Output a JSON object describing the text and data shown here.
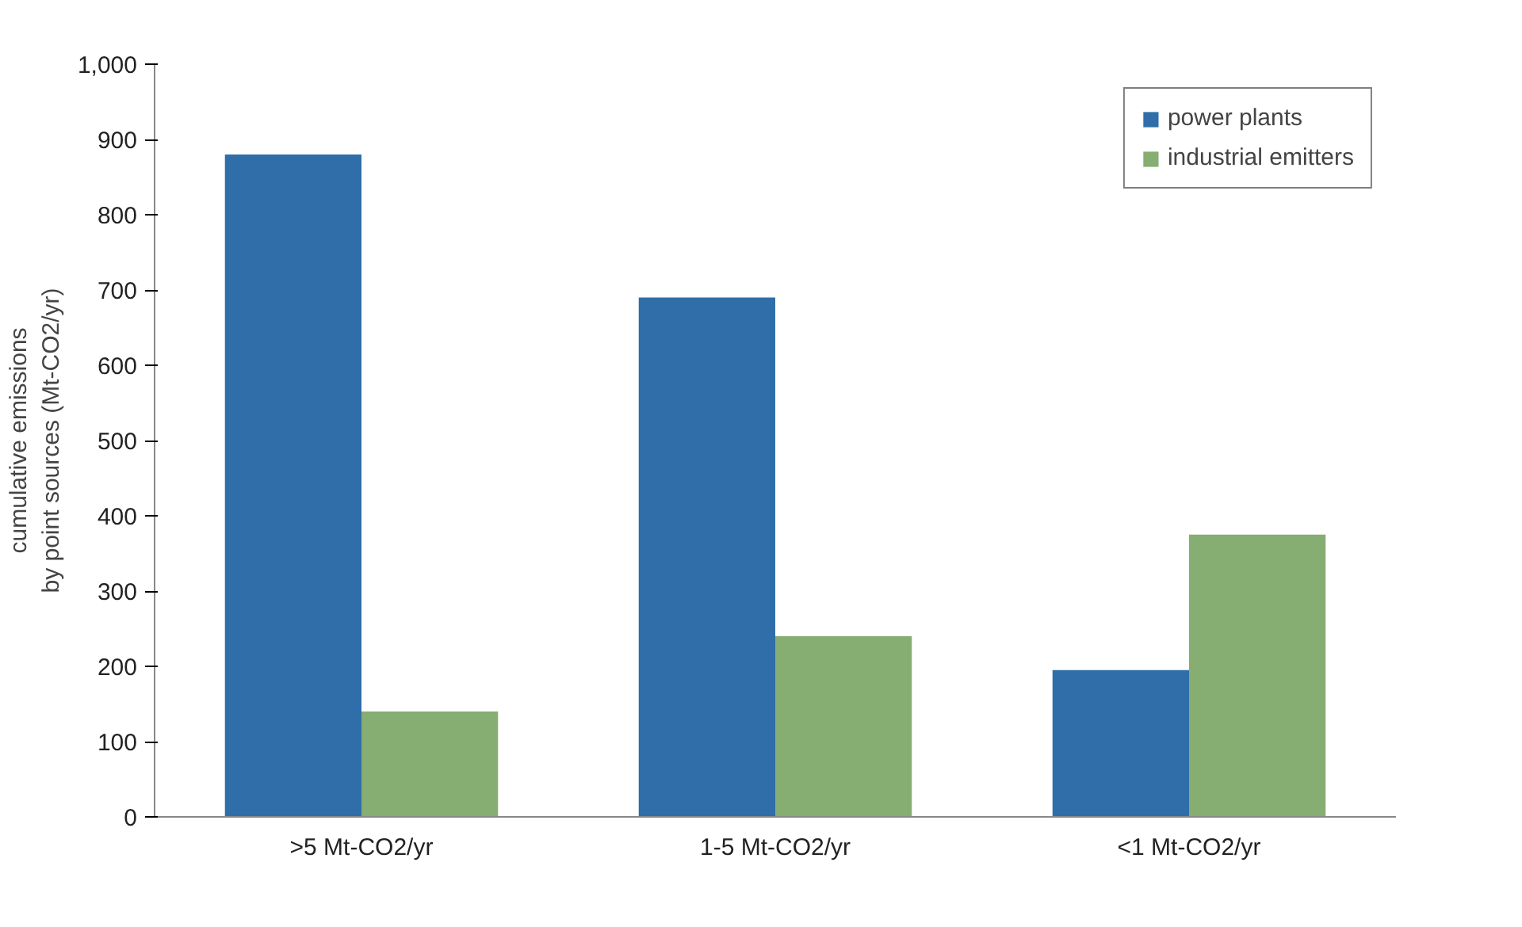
{
  "chart_data": {
    "type": "bar",
    "ylabel": "cumulative emissions\nby point sources (Mt-CO2/yr)",
    "categories": [
      ">5 Mt-CO2/yr",
      "1-5 Mt-CO2/yr",
      "<1 Mt-CO2/yr"
    ],
    "series": [
      {
        "name": "power plants",
        "color": "#2f6ea8",
        "values": [
          880,
          690,
          195
        ]
      },
      {
        "name": "industrial emitters",
        "color": "#86ad72",
        "values": [
          140,
          240,
          375
        ]
      }
    ],
    "ylim": [
      0,
      1000
    ],
    "yticks": [
      {
        "value": 0,
        "label": "0"
      },
      {
        "value": 100,
        "label": "100"
      },
      {
        "value": 200,
        "label": "200"
      },
      {
        "value": 300,
        "label": "300"
      },
      {
        "value": 400,
        "label": "400"
      },
      {
        "value": 500,
        "label": "500"
      },
      {
        "value": 600,
        "label": "600"
      },
      {
        "value": 700,
        "label": "700"
      },
      {
        "value": 800,
        "label": "800"
      },
      {
        "value": 900,
        "label": "900"
      },
      {
        "value": 1000,
        "label": "1,000"
      }
    ],
    "grid": false,
    "legend": "top right"
  }
}
